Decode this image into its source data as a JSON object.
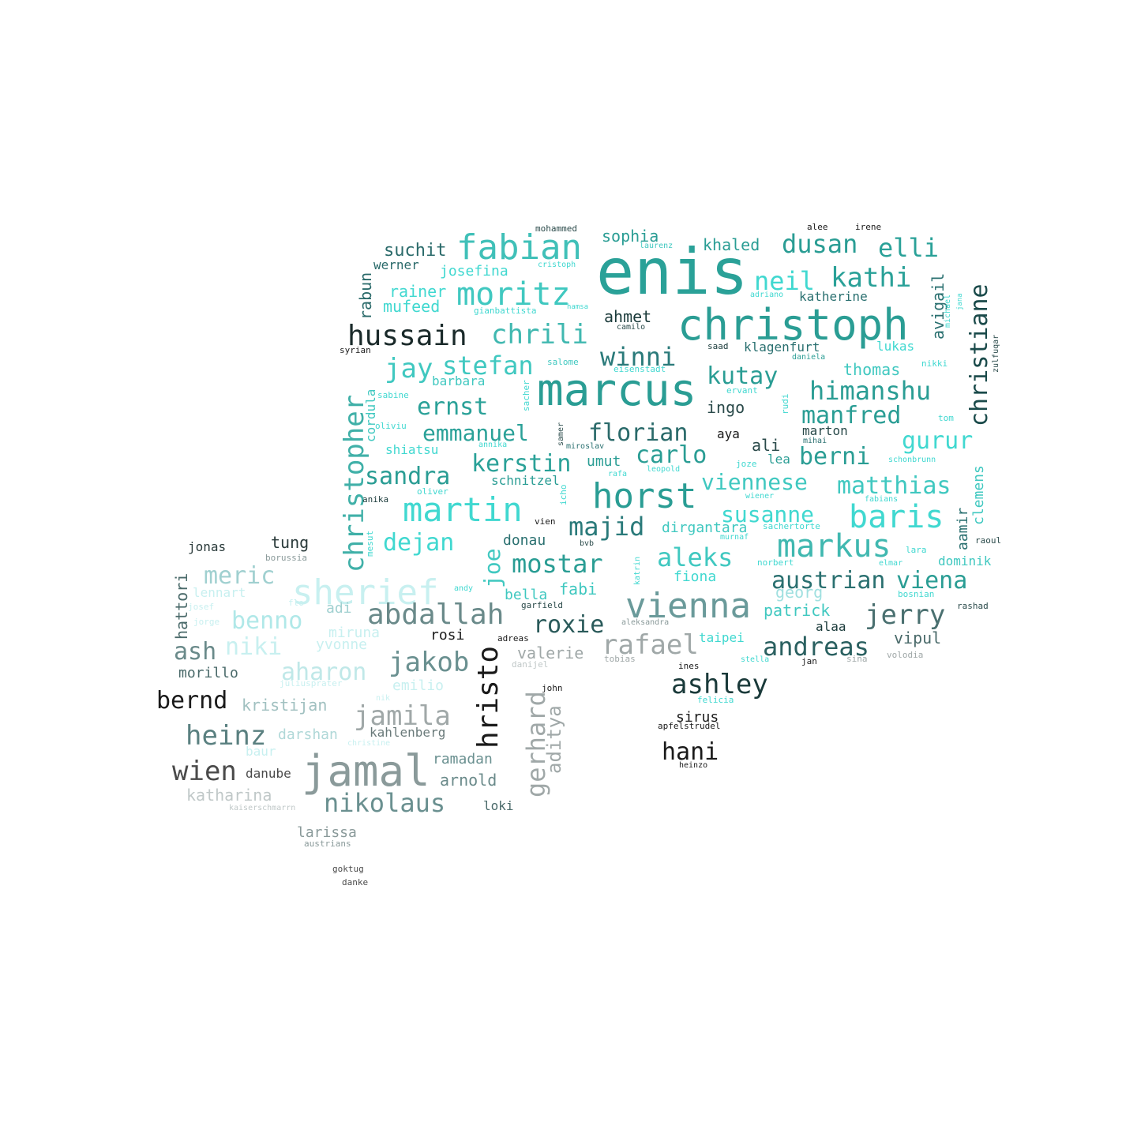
{
  "words": [
    {
      "text": "enis",
      "color": "#2aa198"
    },
    {
      "text": "marcus",
      "color": "#2a9d94"
    },
    {
      "text": "christoph",
      "color": "#2a9d94"
    },
    {
      "text": "jamal",
      "color": "#8a9a9a"
    },
    {
      "text": "fabian",
      "color": "#40c0b8"
    },
    {
      "text": "moritz",
      "color": "#40c8c0"
    },
    {
      "text": "hussain",
      "color": "#1a2a2a"
    },
    {
      "text": "chrili",
      "color": "#40b8b0"
    },
    {
      "text": "horst",
      "color": "#2a9d94"
    },
    {
      "text": "sherief",
      "color": "#c8f0f0"
    },
    {
      "text": "vienna",
      "color": "#6a9a9a"
    },
    {
      "text": "martin",
      "color": "#40d8d0"
    },
    {
      "text": "markus",
      "color": "#40b8b0"
    },
    {
      "text": "baris",
      "color": "#40d8d0"
    },
    {
      "text": "abdallah",
      "color": "#6a8a8a"
    },
    {
      "text": "christopher",
      "color": "#40b0a8"
    },
    {
      "text": "christiane",
      "color": "#1a4a4a"
    },
    {
      "text": "austrian",
      "color": "#2a7070"
    },
    {
      "text": "viena",
      "color": "#2a9d94"
    },
    {
      "text": "jerry",
      "color": "#4a7070"
    },
    {
      "text": "andreas",
      "color": "#2a6060"
    },
    {
      "text": "ashley",
      "color": "#1a3a3a"
    },
    {
      "text": "hristo",
      "color": "#1a1a1a"
    },
    {
      "text": "jamila",
      "color": "#a0a8a8"
    },
    {
      "text": "jakob",
      "color": "#6a9090"
    },
    {
      "text": "rafael",
      "color": "#a0a8a8"
    },
    {
      "text": "heinz",
      "color": "#5a8080"
    },
    {
      "text": "wien",
      "color": "#4a4a4a"
    },
    {
      "text": "nikolaus",
      "color": "#6a9090"
    },
    {
      "text": "bernd",
      "color": "#1a1a1a"
    },
    {
      "text": "kathi",
      "color": "#2aa198"
    },
    {
      "text": "neil",
      "color": "#40d8d0"
    },
    {
      "text": "dusan",
      "color": "#2a9d94"
    },
    {
      "text": "elli",
      "color": "#2aa198"
    },
    {
      "text": "jay",
      "color": "#40c8c0"
    },
    {
      "text": "stefan",
      "color": "#40c8c0"
    },
    {
      "text": "winni",
      "color": "#2a7a7a"
    },
    {
      "text": "kutay",
      "color": "#2a9d94"
    },
    {
      "text": "himanshu",
      "color": "#2a9d94"
    },
    {
      "text": "manfred",
      "color": "#2a9d94"
    },
    {
      "text": "gurur",
      "color": "#40d8d0"
    },
    {
      "text": "berni",
      "color": "#2a9d94"
    },
    {
      "text": "matthias",
      "color": "#40c8c0"
    },
    {
      "text": "viennese",
      "color": "#40c8c0"
    },
    {
      "text": "susanne",
      "color": "#40d8d0"
    },
    {
      "text": "carlo",
      "color": "#2a9d94"
    },
    {
      "text": "florian",
      "color": "#2a6a6a"
    },
    {
      "text": "emmanuel",
      "color": "#2aa198"
    },
    {
      "text": "ernst",
      "color": "#2aa198"
    },
    {
      "text": "kerstin",
      "color": "#2aa198"
    },
    {
      "text": "sandra",
      "color": "#2a9d94"
    },
    {
      "text": "majid",
      "color": "#2a7a7a"
    },
    {
      "text": "dejan",
      "color": "#40d8d0"
    },
    {
      "text": "mostar",
      "color": "#2a9d94"
    },
    {
      "text": "aleks",
      "color": "#40c8c0"
    },
    {
      "text": "joe",
      "color": "#40c8c0"
    },
    {
      "text": "roxie",
      "color": "#2a5a5a"
    },
    {
      "text": "meric",
      "color": "#a0d0d0"
    },
    {
      "text": "benno",
      "color": "#b0e8e8"
    },
    {
      "text": "niki",
      "color": "#c8f0f0"
    },
    {
      "text": "ash",
      "color": "#6a8a8a"
    },
    {
      "text": "aharon",
      "color": "#c0e8e8"
    },
    {
      "text": "gerhard",
      "color": "#a0a8a8"
    },
    {
      "text": "aditya",
      "color": "#a0a8a8"
    },
    {
      "text": "hani",
      "color": "#1a1a1a"
    },
    {
      "text": "suchit",
      "color": "#2a6a6a"
    },
    {
      "text": "sophia",
      "color": "#2a9d94"
    },
    {
      "text": "khaled",
      "color": "#2a9d94"
    },
    {
      "text": "rainer",
      "color": "#40d8d0"
    },
    {
      "text": "mufeed",
      "color": "#40d8d0"
    },
    {
      "text": "josefina",
      "color": "#40d8d0"
    },
    {
      "text": "werner",
      "color": "#2a6a6a"
    },
    {
      "text": "rabun",
      "color": "#2a6a6a"
    },
    {
      "text": "ahmet",
      "color": "#1a3a3a"
    },
    {
      "text": "avigail",
      "color": "#2a7070"
    },
    {
      "text": "katherine",
      "color": "#2a7070"
    },
    {
      "text": "klagenfurt",
      "color": "#2a7070"
    },
    {
      "text": "lukas",
      "color": "#40d8d0"
    },
    {
      "text": "thomas",
      "color": "#40c8c0"
    },
    {
      "text": "ingo",
      "color": "#2a4a4a"
    },
    {
      "text": "barbara",
      "color": "#40c8c0"
    },
    {
      "text": "cordula",
      "color": "#40c8c0"
    },
    {
      "text": "shiatsu",
      "color": "#40d8d0"
    },
    {
      "text": "schnitzel",
      "color": "#2a9d94"
    },
    {
      "text": "umut",
      "color": "#2a9d94"
    },
    {
      "text": "aya",
      "color": "#1a1a1a"
    },
    {
      "text": "ali",
      "color": "#2a4a4a"
    },
    {
      "text": "lea",
      "color": "#2a9d94"
    },
    {
      "text": "marton",
      "color": "#2a4a4a"
    },
    {
      "text": "clemens",
      "color": "#40c8c0"
    },
    {
      "text": "aamir",
      "color": "#2a7070"
    },
    {
      "text": "dirgantara",
      "color": "#40c8c0"
    },
    {
      "text": "donau",
      "color": "#2a7070"
    },
    {
      "text": "fiona",
      "color": "#40d8d0"
    },
    {
      "text": "dominik",
      "color": "#40c8c0"
    },
    {
      "text": "georg",
      "color": "#a0e0e0"
    },
    {
      "text": "patrick",
      "color": "#40c8c0"
    },
    {
      "text": "fabi",
      "color": "#40c8c0"
    },
    {
      "text": "bella",
      "color": "#40c8c0"
    },
    {
      "text": "valerie",
      "color": "#a0a8a8"
    },
    {
      "text": "taipei",
      "color": "#40d8d0"
    },
    {
      "text": "vipul",
      "color": "#4a6a6a"
    },
    {
      "text": "alaa",
      "color": "#1a3a3a"
    },
    {
      "text": "jonas",
      "color": "#2a3a3a"
    },
    {
      "text": "tung",
      "color": "#2a3a3a"
    },
    {
      "text": "hattori",
      "color": "#4a6a6a"
    },
    {
      "text": "rosi",
      "color": "#1a1a1a"
    },
    {
      "text": "adi",
      "color": "#a0d0d0"
    },
    {
      "text": "miruna",
      "color": "#c8f0f0"
    },
    {
      "text": "morillo",
      "color": "#4a6a6a"
    },
    {
      "text": "kristijan",
      "color": "#a0c0c0"
    },
    {
      "text": "emilio",
      "color": "#c8f0f0"
    },
    {
      "text": "yvonne",
      "color": "#c8f0f0"
    },
    {
      "text": "darshan",
      "color": "#b0d8d8"
    },
    {
      "text": "kahlenberg",
      "color": "#6a7a7a"
    },
    {
      "text": "ramadan",
      "color": "#6a9090"
    },
    {
      "text": "arnold",
      "color": "#6a8a8a"
    },
    {
      "text": "danube",
      "color": "#4a4a4a"
    },
    {
      "text": "katharina",
      "color": "#c0c8c8"
    },
    {
      "text": "loki",
      "color": "#4a6a6a"
    },
    {
      "text": "larissa",
      "color": "#8a9a9a"
    },
    {
      "text": "sirus",
      "color": "#1a1a1a"
    },
    {
      "text": "lennart",
      "color": "#c8f0f0"
    },
    {
      "text": "baur",
      "color": "#c8f0f0"
    },
    {
      "text": "alee",
      "color": "#1a1a1a"
    },
    {
      "text": "irene",
      "color": "#1a1a1a"
    },
    {
      "text": "mohammed",
      "color": "#2a4a4a"
    },
    {
      "text": "laurenz",
      "color": "#40c8c0"
    },
    {
      "text": "cristoph",
      "color": "#40d8d0"
    },
    {
      "text": "adriano",
      "color": "#40d8d0"
    },
    {
      "text": "hamsa",
      "color": "#40d8d0"
    },
    {
      "text": "gianbattista",
      "color": "#40d8d0"
    },
    {
      "text": "camilo",
      "color": "#2a4a4a"
    },
    {
      "text": "saad",
      "color": "#1a3a3a"
    },
    {
      "text": "daniela",
      "color": "#2a9d94"
    },
    {
      "text": "michael",
      "color": "#40d8d0"
    },
    {
      "text": "jana",
      "color": "#40d8d0"
    },
    {
      "text": "zulfuqar",
      "color": "#2a4a4a"
    },
    {
      "text": "syrian",
      "color": "#1a1a1a"
    },
    {
      "text": "salome",
      "color": "#40c8c0"
    },
    {
      "text": "eisenstadt",
      "color": "#40d8d0"
    },
    {
      "text": "nikki",
      "color": "#40d8d0"
    },
    {
      "text": "sabine",
      "color": "#40d8d0"
    },
    {
      "text": "sacher",
      "color": "#40d8d0"
    },
    {
      "text": "ervant",
      "color": "#40d8d0"
    },
    {
      "text": "rudi",
      "color": "#40d8d0"
    },
    {
      "text": "tom",
      "color": "#40d8d0"
    },
    {
      "text": "oliviu",
      "color": "#40d8d0"
    },
    {
      "text": "annika",
      "color": "#40d8d0"
    },
    {
      "text": "samer",
      "color": "#2a4a4a"
    },
    {
      "text": "miroslav",
      "color": "#2a7070"
    },
    {
      "text": "mihai",
      "color": "#2a7070"
    },
    {
      "text": "joze",
      "color": "#40d8d0"
    },
    {
      "text": "schonbrunn",
      "color": "#40d8d0"
    },
    {
      "text": "rafa",
      "color": "#40d8d0"
    },
    {
      "text": "leopold",
      "color": "#40d8d0"
    },
    {
      "text": "oliver",
      "color": "#40d8d0"
    },
    {
      "text": "anika",
      "color": "#1a3a3a"
    },
    {
      "text": "icho",
      "color": "#40d8d0"
    },
    {
      "text": "wiener",
      "color": "#40d8d0"
    },
    {
      "text": "fabians",
      "color": "#40d8d0"
    },
    {
      "text": "vien",
      "color": "#1a1a1a"
    },
    {
      "text": "sachertorte",
      "color": "#40d8d0"
    },
    {
      "text": "murnaf",
      "color": "#40d8d0"
    },
    {
      "text": "raoul",
      "color": "#2a4a4a"
    },
    {
      "text": "mesut",
      "color": "#40d8d0"
    },
    {
      "text": "bvb",
      "color": "#2a4a4a"
    },
    {
      "text": "katrin",
      "color": "#40d8d0"
    },
    {
      "text": "lara",
      "color": "#40d8d0"
    },
    {
      "text": "norbert",
      "color": "#40d8d0"
    },
    {
      "text": "elmar",
      "color": "#40d8d0"
    },
    {
      "text": "andy",
      "color": "#40d8d0"
    },
    {
      "text": "bosnian",
      "color": "#40d8d0"
    },
    {
      "text": "garfield",
      "color": "#2a4a4a"
    },
    {
      "text": "rashad",
      "color": "#2a4a4a"
    },
    {
      "text": "aleksandra",
      "color": "#8a9a9a"
    },
    {
      "text": "adreas",
      "color": "#1a1a1a"
    },
    {
      "text": "tobias",
      "color": "#a0a8a8"
    },
    {
      "text": "ines",
      "color": "#1a1a1a"
    },
    {
      "text": "stella",
      "color": "#40d8d0"
    },
    {
      "text": "jan",
      "color": "#1a1a1a"
    },
    {
      "text": "sina",
      "color": "#a0a8a8"
    },
    {
      "text": "volodia",
      "color": "#a0a8a8"
    },
    {
      "text": "danijel",
      "color": "#c0c8c8"
    },
    {
      "text": "john",
      "color": "#1a1a1a"
    },
    {
      "text": "felicia",
      "color": "#40d8d0"
    },
    {
      "text": "apfelstrudel",
      "color": "#1a1a1a"
    },
    {
      "text": "heinzo",
      "color": "#1a1a1a"
    },
    {
      "text": "borussia",
      "color": "#8a9a9a"
    },
    {
      "text": "josef",
      "color": "#c8f0f0"
    },
    {
      "text": "flo",
      "color": "#c8f0f0"
    },
    {
      "text": "jorge",
      "color": "#c8f0f0"
    },
    {
      "text": "juliusprater",
      "color": "#c8f0f0"
    },
    {
      "text": "nik",
      "color": "#c8f0f0"
    },
    {
      "text": "christine",
      "color": "#c8f0f0"
    },
    {
      "text": "kaiserschmarrn",
      "color": "#c0c8c8"
    },
    {
      "text": "austrians",
      "color": "#8a9a9a"
    },
    {
      "text": "goktug",
      "color": "#4a4a4a"
    },
    {
      "text": "danke",
      "color": "#4a4a4a"
    }
  ]
}
